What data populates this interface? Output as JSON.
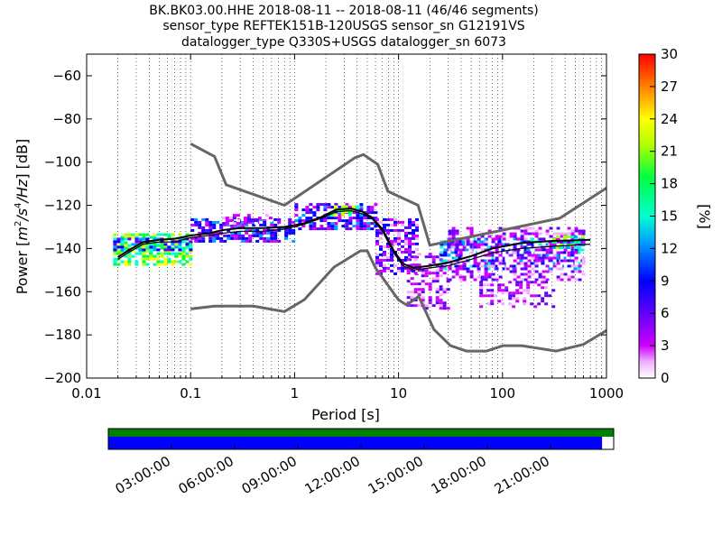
{
  "title_lines": [
    "BK.BK03.00.HHE   2018-08-11 -- 2018-08-11  (46/46 segments)",
    "sensor_type REFTEK151B-120USGS sensor_sn G12191VS",
    "datalogger_type Q330S+USGS datalogger_sn 6073"
  ],
  "colorbar": {
    "label": "[%]",
    "ticks": [
      "0",
      "3",
      "6",
      "9",
      "12",
      "15",
      "18",
      "21",
      "24",
      "27",
      "30"
    ],
    "range": [
      0,
      30
    ]
  },
  "timeline": {
    "ticks": [
      "03:00:00",
      "06:00:00",
      "09:00:00",
      "12:00:00",
      "15:00:00",
      "18:00:00",
      "21:00:00"
    ],
    "colors": {
      "top": "#008000",
      "bottom": "#0000ff"
    },
    "coverage_fraction": 0.977
  },
  "chart_data": {
    "type": "heatmap",
    "title": "BK.BK03.00.HHE   2018-08-11 -- 2018-08-11  (46/46 segments)",
    "xlabel": "Period [s]",
    "ylabel": "Power [m²/s⁴/Hz] [dB]",
    "ylabel_parts": {
      "prefix": "Power [",
      "expr": "m",
      "sup1": "2",
      "s": "/s",
      "sup2": "4",
      "tail": "/Hz",
      "suffix": "] [dB]"
    },
    "x_scale": "log",
    "xlim": [
      0.01,
      1000
    ],
    "ylim": [
      -200,
      -50
    ],
    "x_ticks": [
      0.01,
      0.1,
      1,
      10,
      100,
      1000
    ],
    "x_tick_labels": [
      "0.01",
      "0.1",
      "1",
      "10",
      "100",
      "1000"
    ],
    "y_ticks": [
      -200,
      -180,
      -160,
      -140,
      -120,
      -100,
      -80,
      -60
    ],
    "y_tick_labels": [
      "−200",
      "−180",
      "−160",
      "−140",
      "−120",
      "−100",
      "−80",
      "−60"
    ],
    "grid": "dotted vertical",
    "colormap": "pqlx",
    "noise_models": {
      "high": {
        "period": [
          0.1,
          0.17,
          0.22,
          0.8,
          3.8,
          4.6,
          6.3,
          7.9,
          15.4,
          20,
          354.8,
          1000
        ],
        "power": [
          -91.5,
          -97.4,
          -110.5,
          -120,
          -98,
          -96.5,
          -101,
          -113.5,
          -120,
          -138.5,
          -126,
          -112
        ]
      },
      "low": {
        "period": [
          0.1,
          0.17,
          0.4,
          0.8,
          1.24,
          2.4,
          4.3,
          5,
          6,
          10,
          12,
          15.6,
          21.9,
          31.6,
          45,
          70,
          101,
          154,
          328,
          600,
          1000
        ],
        "power": [
          -168,
          -166.7,
          -166.7,
          -169.2,
          -163.7,
          -148.6,
          -141.1,
          -141.1,
          -149,
          -163.8,
          -166.2,
          -162.1,
          -177.5,
          -185,
          -187.5,
          -187.5,
          -185,
          -185,
          -187.5,
          -184.4,
          -178
        ]
      }
    },
    "mode": {
      "period": [
        0.02,
        0.025,
        0.035,
        0.05,
        0.07,
        0.1,
        0.15,
        0.2,
        0.3,
        0.5,
        0.8,
        1.2,
        1.8,
        2.5,
        3.5,
        4.5,
        5.5,
        7,
        9,
        11,
        14,
        20,
        30,
        50,
        80,
        150,
        300,
        700
      ],
      "power": [
        -145,
        -142,
        -138,
        -137,
        -137,
        -135,
        -134,
        -133,
        -132,
        -132,
        -131,
        -129,
        -126,
        -123,
        -122.5,
        -124,
        -126,
        -132,
        -142,
        -148,
        -150,
        -149,
        -148,
        -145,
        -142,
        -140,
        -139,
        -138
      ]
    },
    "mean": {
      "period": [
        0.02,
        0.025,
        0.035,
        0.05,
        0.07,
        0.1,
        0.15,
        0.2,
        0.3,
        0.5,
        0.8,
        1.2,
        1.8,
        2.5,
        3.5,
        4.5,
        5.5,
        7,
        9,
        11,
        14,
        20,
        30,
        50,
        80,
        150,
        300,
        700
      ],
      "power": [
        -144,
        -141,
        -137,
        -136,
        -135.5,
        -134,
        -133,
        -131.5,
        -130.5,
        -130.5,
        -130,
        -128.5,
        -125.5,
        -122,
        -121.5,
        -123,
        -125.5,
        -131,
        -141,
        -147,
        -149,
        -148,
        -146.5,
        -143.5,
        -140,
        -137.5,
        -136.5,
        -136
      ]
    },
    "density_blocks": [
      {
        "p": [
          0.018,
          0.1
        ],
        "db": [
          -147,
          -133
        ],
        "c": 21
      },
      {
        "p": [
          0.018,
          0.1
        ],
        "db": [
          -141,
          -135
        ],
        "c": 12
      },
      {
        "p": [
          0.1,
          1.0
        ],
        "db": [
          -137,
          -126
        ],
        "c": 9
      },
      {
        "p": [
          0.2,
          0.6
        ],
        "db": [
          -128,
          -124
        ],
        "c": 3
      },
      {
        "p": [
          1.0,
          6.0
        ],
        "db": [
          -131,
          -119
        ],
        "c": 9
      },
      {
        "p": [
          2.2,
          4.0
        ],
        "db": [
          -124,
          -120
        ],
        "c": 21
      },
      {
        "p": [
          6.0,
          15.0
        ],
        "db": [
          -152,
          -126
        ],
        "c": 6
      },
      {
        "p": [
          12.0,
          30.0
        ],
        "db": [
          -168,
          -142
        ],
        "c": 3
      },
      {
        "p": [
          25.0,
          600.0
        ],
        "db": [
          -150,
          -135
        ],
        "c": 12
      },
      {
        "p": [
          30.0,
          600.0
        ],
        "db": [
          -154,
          -130
        ],
        "c": 3
      },
      {
        "p": [
          60.0,
          300.0
        ],
        "db": [
          -167,
          -155
        ],
        "c": 3
      },
      {
        "p": [
          300.0,
          600.0
        ],
        "db": [
          -140,
          -134
        ],
        "c": 18
      }
    ]
  }
}
